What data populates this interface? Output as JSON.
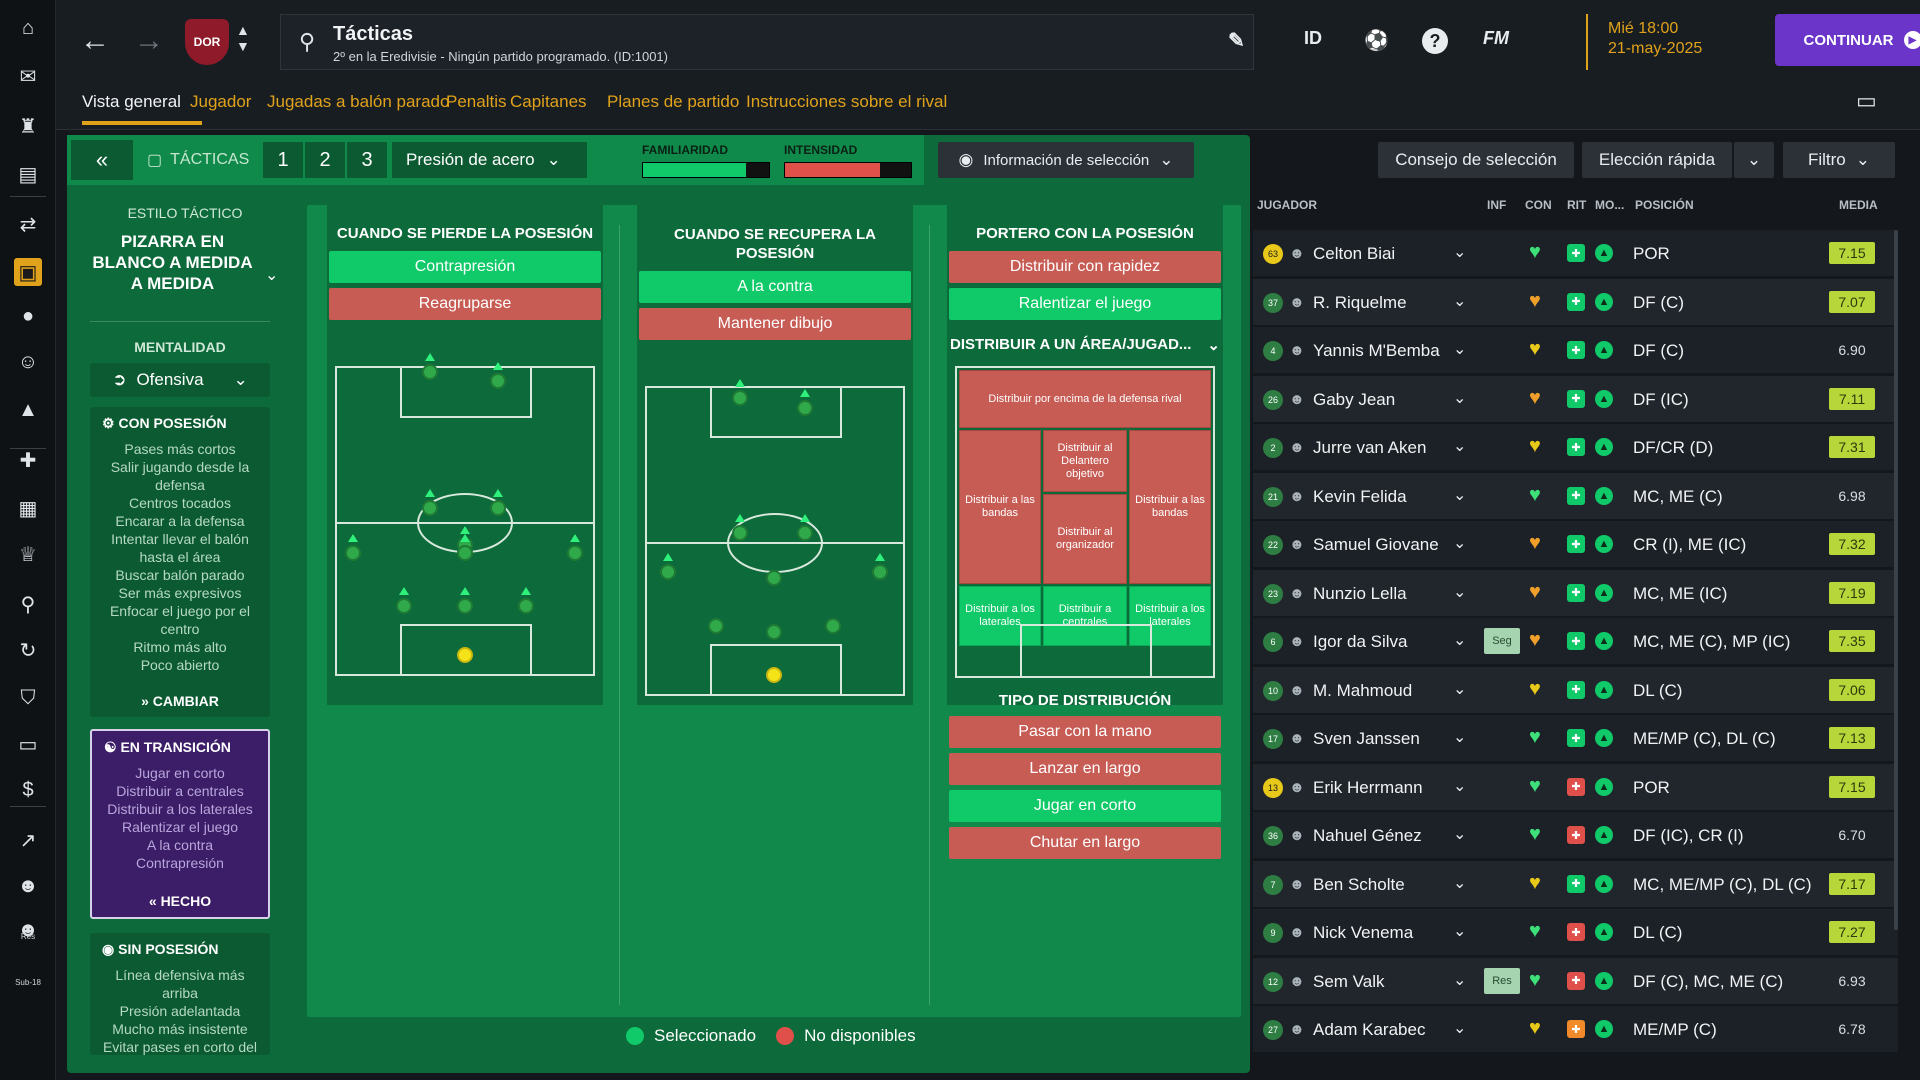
{
  "sidebar": {
    "icons": [
      "home-icon",
      "inbox-icon",
      "squad-icon",
      "notebook-icon",
      "transfers-icon",
      "tactics-icon",
      "ball-icon",
      "staff-icon",
      "training-icon",
      "medical-icon",
      "calendar-icon",
      "trophy-icon",
      "scouting-icon",
      "refresh-icon",
      "club-icon",
      "briefcase-icon",
      "finances-icon",
      "stats-icon",
      "reserves-icon",
      "u18-icon"
    ],
    "reserves_label": "Res",
    "u18_label": "Sub-18"
  },
  "header": {
    "title": "Tácticas",
    "subtitle": "2º en la Eredivisie - Ningún partido programado. (ID:1001)",
    "club_crest_text": "DOR",
    "id_label": "ID",
    "fm_label": "FM",
    "date_line1": "Mié 18:00",
    "date_line2": "21-may-2025",
    "continue_label": "CONTINUAR"
  },
  "tabs": [
    "Vista general",
    "Jugador",
    "Jugadas a balón parado",
    "Penaltis",
    "Capitanes",
    "Planes de partido",
    "Instrucciones sobre el rival"
  ],
  "tactics_bar": {
    "tacticas_label": "TÁCTICAS",
    "slots": [
      "1",
      "2",
      "3"
    ],
    "pressing_label": "Presión de acero",
    "familiarity_label": "FAMILIARIDAD",
    "familiarity_value": 0.82,
    "intensity_label": "INTENSIDAD",
    "intensity_value": 0.75,
    "selection_info_label": "Información de selección"
  },
  "style": {
    "title_label": "ESTILO TÁCTICO",
    "name": "PIZARRA EN BLANCO A MEDIDA A MEDIDA",
    "mentality_label": "MENTALIDAD",
    "mentality_value": "Ofensiva",
    "in_possession": {
      "title": "CON POSESIÓN",
      "items": [
        "Pases más cortos",
        "Salir jugando desde la defensa",
        "Centros tocados",
        "Encarar a la defensa",
        "Intentar llevar el balón hasta el área",
        "Buscar balón parado",
        "Ser más expresivos",
        "Enfocar el juego por el centro",
        "Ritmo más alto",
        "Poco abierto"
      ],
      "action": "CAMBIAR"
    },
    "in_transition": {
      "title": "EN TRANSICIÓN",
      "items": [
        "Jugar en corto",
        "Distribuir a centrales",
        "Distribuir a los laterales",
        "Ralentizar el juego",
        "A la contra",
        "Contrapresión"
      ],
      "action": "HECHO"
    },
    "out_possession": {
      "title": "SIN POSESIÓN",
      "items": [
        "Línea defensiva más arriba",
        "Presión adelantada",
        "Mucho más insistente",
        "Evitar pases en corto del"
      ]
    }
  },
  "phases": {
    "lose": {
      "title": "CUANDO SE PIERDE LA POSESIÓN",
      "options": [
        {
          "label": "Contrapresión",
          "selected": true
        },
        {
          "label": "Reagruparse",
          "selected": false
        }
      ]
    },
    "win": {
      "title": "CUANDO SE RECUPERA LA POSESIÓN",
      "options": [
        {
          "label": "A la contra",
          "selected": true
        },
        {
          "label": "Mantener dibujo",
          "selected": false
        }
      ]
    },
    "gk": {
      "title": "PORTERO CON LA POSESIÓN",
      "options": [
        {
          "label": "Distribuir con rapidez",
          "selected": false
        },
        {
          "label": "Ralentizar el juego",
          "selected": true
        }
      ]
    }
  },
  "distribution": {
    "area_label": "DISTRIBUIR A UN ÁREA/JUGAD...",
    "zones": {
      "top": "Distribuir por encima de la defensa rival",
      "target": "Distribuir al Delantero objetivo",
      "flank_left": "Distribuir a las bandas",
      "flank_right": "Distribuir a las bandas",
      "playmaker": "Distribuir al organizador",
      "fb_left": "Distribuir a los laterales",
      "cb": "Distribuir a centrales",
      "fb_right": "Distribuir a los laterales"
    },
    "type_label": "TIPO DE DISTRIBUCIÓN",
    "types": [
      {
        "label": "Pasar con la mano",
        "selected": false
      },
      {
        "label": "Lanzar en largo",
        "selected": false
      },
      {
        "label": "Jugar en corto",
        "selected": true
      },
      {
        "label": "Chutar en largo",
        "selected": false
      }
    ]
  },
  "legend": {
    "selected": "Seleccionado",
    "unavailable": "No disponibles"
  },
  "right_panel": {
    "selection_advice": "Consejo de selección",
    "quick_pick": "Elección rápida",
    "filter": "Filtro",
    "headers": {
      "player": "JUGADOR",
      "inf": "INF",
      "con": "CON",
      "rit": "RIT",
      "mo": "MO...",
      "position": "POSICIÓN",
      "rating": "MEDIA"
    },
    "players": [
      {
        "num": "63",
        "gk": true,
        "name": "Celton Biai",
        "inf": "",
        "con": "green",
        "rit": "green",
        "pos": "POR",
        "rating": "7.15",
        "hi": true
      },
      {
        "num": "37",
        "gk": false,
        "name": "R. Riquelme",
        "inf": "",
        "con": "orange",
        "rit": "green",
        "pos": "DF (C)",
        "rating": "7.07",
        "hi": true
      },
      {
        "num": "4",
        "gk": false,
        "name": "Yannis M'Bemba",
        "inf": "",
        "con": "yellow",
        "rit": "green",
        "pos": "DF (C)",
        "rating": "6.90",
        "hi": false
      },
      {
        "num": "26",
        "gk": false,
        "name": "Gaby Jean",
        "inf": "",
        "con": "orange",
        "rit": "green",
        "pos": "DF (IC)",
        "rating": "7.11",
        "hi": true
      },
      {
        "num": "2",
        "gk": false,
        "name": "Jurre van Aken",
        "inf": "",
        "con": "yellow",
        "rit": "green",
        "pos": "DF/CR (D)",
        "rating": "7.31",
        "hi": true
      },
      {
        "num": "21",
        "gk": false,
        "name": "Kevin Felida",
        "inf": "",
        "con": "green",
        "rit": "green",
        "pos": "MC, ME (C)",
        "rating": "6.98",
        "hi": false
      },
      {
        "num": "22",
        "gk": false,
        "name": "Samuel Giovane",
        "inf": "",
        "con": "orange",
        "rit": "green",
        "pos": "CR (I), ME (IC)",
        "rating": "7.32",
        "hi": true
      },
      {
        "num": "23",
        "gk": false,
        "name": "Nunzio Lella",
        "inf": "",
        "con": "orange",
        "rit": "green",
        "pos": "MC, ME (IC)",
        "rating": "7.19",
        "hi": true
      },
      {
        "num": "6",
        "gk": false,
        "name": "Igor da Silva",
        "inf": "Seg",
        "con": "orange",
        "rit": "green",
        "pos": "MC, ME (C), MP (IC)",
        "rating": "7.35",
        "hi": true
      },
      {
        "num": "10",
        "gk": false,
        "name": "M. Mahmoud",
        "inf": "",
        "con": "yellow",
        "rit": "green",
        "pos": "DL (C)",
        "rating": "7.06",
        "hi": true
      },
      {
        "num": "17",
        "gk": false,
        "name": "Sven Janssen",
        "inf": "",
        "con": "green",
        "rit": "green",
        "pos": "ME/MP (C), DL (C)",
        "rating": "7.13",
        "hi": true
      },
      {
        "num": "13",
        "gk": true,
        "name": "Erik Herrmann",
        "inf": "",
        "con": "green",
        "rit": "red",
        "pos": "POR",
        "rating": "7.15",
        "hi": true
      },
      {
        "num": "36",
        "gk": false,
        "name": "Nahuel Génez",
        "inf": "",
        "con": "green",
        "rit": "red",
        "pos": "DF (IC), CR (I)",
        "rating": "6.70",
        "hi": false
      },
      {
        "num": "7",
        "gk": false,
        "name": "Ben Scholte",
        "inf": "",
        "con": "yellow",
        "rit": "green",
        "pos": "MC, ME/MP (C), DL (C)",
        "rating": "7.17",
        "hi": true
      },
      {
        "num": "9",
        "gk": false,
        "name": "Nick Venema",
        "inf": "",
        "con": "green",
        "rit": "red",
        "pos": "DL (C)",
        "rating": "7.27",
        "hi": true
      },
      {
        "num": "12",
        "gk": false,
        "name": "Sem Valk",
        "inf": "Res",
        "con": "green",
        "rit": "red",
        "pos": "DF (C), MC, ME (C)",
        "rating": "6.93",
        "hi": false
      },
      {
        "num": "27",
        "gk": false,
        "name": "Adam Karabec",
        "inf": "",
        "con": "yellow",
        "rit": "orange",
        "pos": "ME/MP (C)",
        "rating": "6.78",
        "hi": false
      }
    ]
  },
  "colors": {
    "accent": "#e0a21a",
    "selected": "#10c968",
    "unselected": "#c75c55",
    "continue": "#6c35c9"
  }
}
